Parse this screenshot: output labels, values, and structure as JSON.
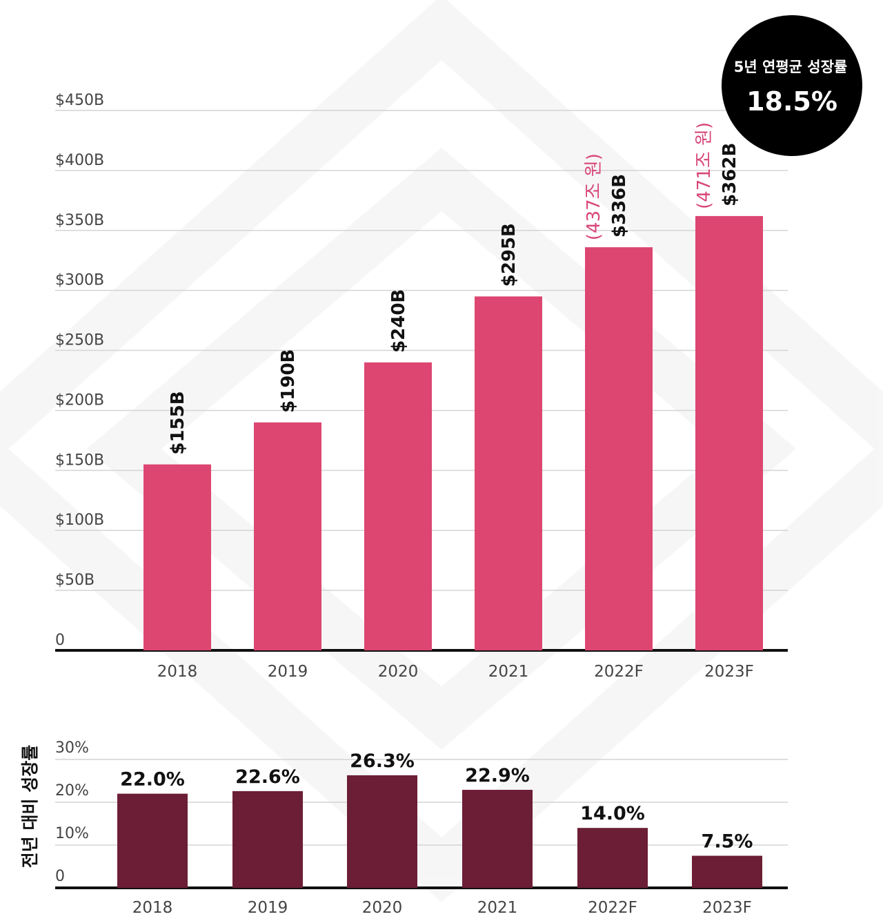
{
  "chart_data": [
    {
      "type": "bar",
      "title": "",
      "xlabel": "",
      "ylabel": "",
      "categories": [
        "2018",
        "2019",
        "2020",
        "2021",
        "2022F",
        "2023F"
      ],
      "values": [
        155,
        190,
        240,
        295,
        336,
        362
      ],
      "value_labels": [
        "$155B",
        "$190B",
        "$240B",
        "$295B",
        "$336B",
        "$362B"
      ],
      "krw_labels": [
        "",
        "",
        "",
        "",
        "(437조 원)",
        "(471조 원)"
      ],
      "ylim": [
        0,
        450
      ],
      "yticks": [
        0,
        50,
        100,
        150,
        200,
        250,
        300,
        350,
        400,
        450
      ],
      "ytick_labels": [
        "0",
        "$50B",
        "$100B",
        "$150B",
        "$200B",
        "$250B",
        "$300B",
        "$350B",
        "$400B",
        "$450B"
      ],
      "color": "#dc4671",
      "grid": true
    },
    {
      "type": "bar",
      "title": "",
      "xlabel": "",
      "ylabel": "전년 대비 성장률",
      "categories": [
        "2018",
        "2019",
        "2020",
        "2021",
        "2022F",
        "2023F"
      ],
      "values": [
        22.0,
        22.6,
        26.3,
        22.9,
        14.0,
        7.5
      ],
      "value_labels": [
        "22.0%",
        "22.6%",
        "26.3%",
        "22.9%",
        "14.0%",
        "7.5%"
      ],
      "ylim": [
        0,
        30
      ],
      "yticks": [
        0,
        10,
        20,
        30
      ],
      "ytick_labels": [
        "0",
        "10%",
        "20%",
        "30%"
      ],
      "color": "#6b1e35",
      "grid": true
    }
  ],
  "badge": {
    "line1": "5년 연평균 성장률",
    "line2": "18.5%",
    "color": "#000000"
  }
}
